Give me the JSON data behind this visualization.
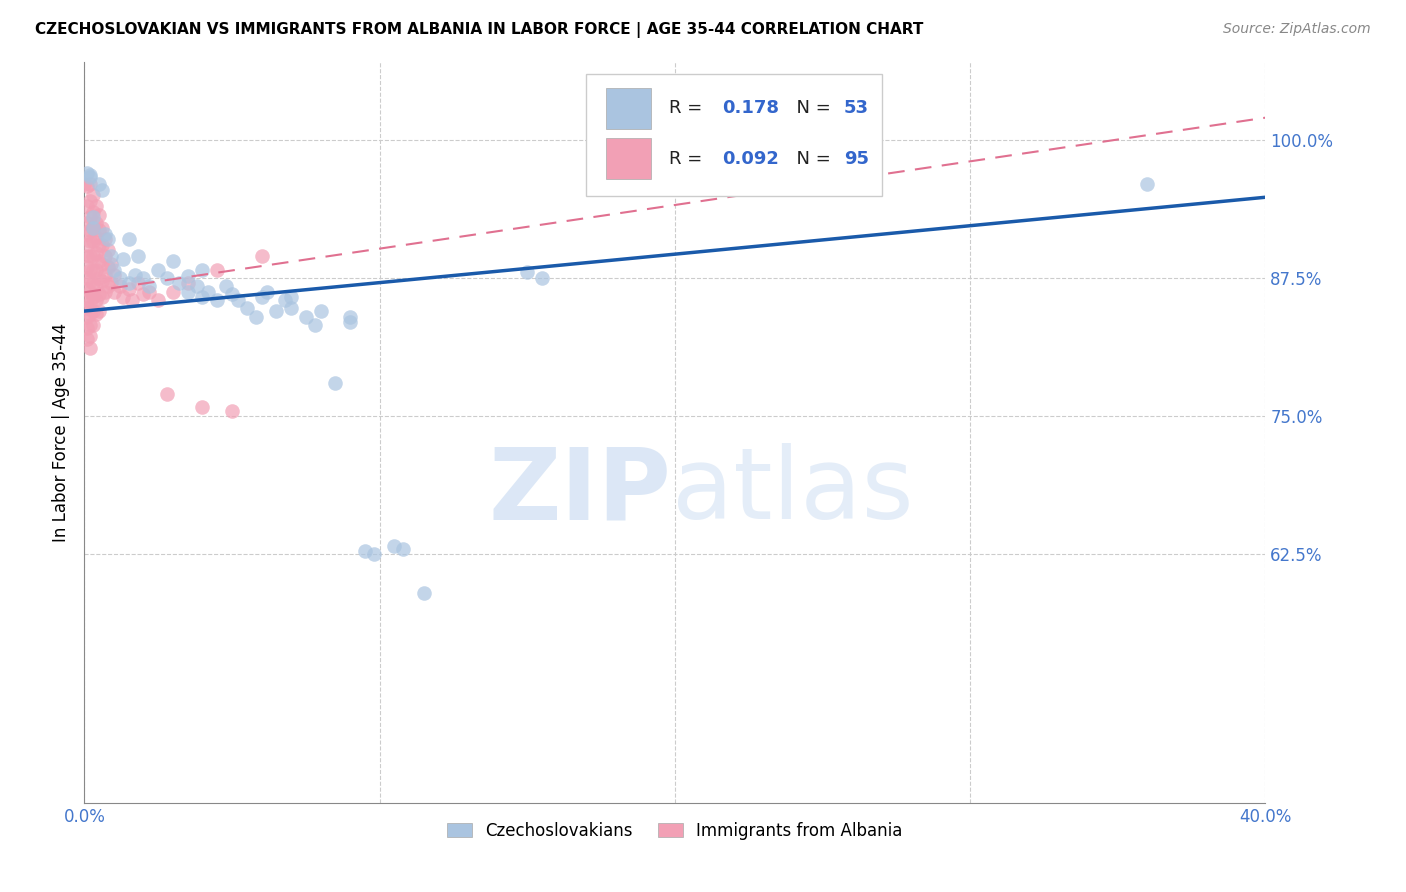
{
  "title": "CZECHOSLOVAKIAN VS IMMIGRANTS FROM ALBANIA IN LABOR FORCE | AGE 35-44 CORRELATION CHART",
  "source": "Source: ZipAtlas.com",
  "ylabel": "In Labor Force | Age 35-44",
  "xlim": [
    0.0,
    0.4
  ],
  "ylim": [
    0.4,
    1.07
  ],
  "yticks": [
    0.625,
    0.75,
    0.875,
    1.0
  ],
  "ytick_labels": [
    "62.5%",
    "75.0%",
    "87.5%",
    "100.0%"
  ],
  "xticks": [
    0.0,
    0.1,
    0.2,
    0.3,
    0.4
  ],
  "legend_r_blue": "0.178",
  "legend_n_blue": "53",
  "legend_r_pink": "0.092",
  "legend_n_pink": "95",
  "blue_color": "#aac4e0",
  "pink_color": "#f2a0b5",
  "trendline_blue_color": "#1a5aaa",
  "trendline_pink_color": "#e07090",
  "blue_trend_x0": 0.0,
  "blue_trend_y0": 0.845,
  "blue_trend_x1": 0.4,
  "blue_trend_y1": 0.948,
  "pink_trend_x0": 0.0,
  "pink_trend_y0": 0.862,
  "pink_trend_x1": 0.4,
  "pink_trend_y1": 1.02,
  "blue_scatter": [
    [
      0.001,
      0.97
    ],
    [
      0.002,
      0.968
    ],
    [
      0.002,
      0.966
    ],
    [
      0.003,
      0.93
    ],
    [
      0.003,
      0.92
    ],
    [
      0.005,
      0.96
    ],
    [
      0.006,
      0.955
    ],
    [
      0.007,
      0.915
    ],
    [
      0.008,
      0.91
    ],
    [
      0.009,
      0.895
    ],
    [
      0.01,
      0.882
    ],
    [
      0.012,
      0.875
    ],
    [
      0.013,
      0.892
    ],
    [
      0.015,
      0.87
    ],
    [
      0.015,
      0.91
    ],
    [
      0.017,
      0.878
    ],
    [
      0.018,
      0.895
    ],
    [
      0.02,
      0.875
    ],
    [
      0.022,
      0.868
    ],
    [
      0.025,
      0.882
    ],
    [
      0.028,
      0.875
    ],
    [
      0.03,
      0.89
    ],
    [
      0.032,
      0.87
    ],
    [
      0.035,
      0.862
    ],
    [
      0.035,
      0.877
    ],
    [
      0.038,
      0.868
    ],
    [
      0.04,
      0.882
    ],
    [
      0.04,
      0.858
    ],
    [
      0.042,
      0.862
    ],
    [
      0.045,
      0.855
    ],
    [
      0.048,
      0.868
    ],
    [
      0.05,
      0.86
    ],
    [
      0.052,
      0.855
    ],
    [
      0.055,
      0.848
    ],
    [
      0.058,
      0.84
    ],
    [
      0.06,
      0.858
    ],
    [
      0.062,
      0.862
    ],
    [
      0.065,
      0.845
    ],
    [
      0.068,
      0.855
    ],
    [
      0.07,
      0.858
    ],
    [
      0.07,
      0.848
    ],
    [
      0.075,
      0.84
    ],
    [
      0.078,
      0.832
    ],
    [
      0.08,
      0.845
    ],
    [
      0.085,
      0.78
    ],
    [
      0.09,
      0.84
    ],
    [
      0.09,
      0.835
    ],
    [
      0.095,
      0.628
    ],
    [
      0.098,
      0.625
    ],
    [
      0.105,
      0.632
    ],
    [
      0.108,
      0.63
    ],
    [
      0.115,
      0.59
    ],
    [
      0.15,
      0.88
    ],
    [
      0.155,
      0.875
    ],
    [
      0.36,
      0.96
    ]
  ],
  "pink_scatter": [
    [
      0.0,
      0.96
    ],
    [
      0.001,
      0.958
    ],
    [
      0.001,
      0.94
    ],
    [
      0.001,
      0.925
    ],
    [
      0.001,
      0.915
    ],
    [
      0.001,
      0.905
    ],
    [
      0.001,
      0.895
    ],
    [
      0.001,
      0.885
    ],
    [
      0.001,
      0.875
    ],
    [
      0.001,
      0.865
    ],
    [
      0.001,
      0.855
    ],
    [
      0.001,
      0.848
    ],
    [
      0.001,
      0.84
    ],
    [
      0.001,
      0.83
    ],
    [
      0.001,
      0.82
    ],
    [
      0.002,
      0.96
    ],
    [
      0.002,
      0.945
    ],
    [
      0.002,
      0.93
    ],
    [
      0.002,
      0.918
    ],
    [
      0.002,
      0.908
    ],
    [
      0.002,
      0.895
    ],
    [
      0.002,
      0.882
    ],
    [
      0.002,
      0.872
    ],
    [
      0.002,
      0.862
    ],
    [
      0.002,
      0.852
    ],
    [
      0.002,
      0.842
    ],
    [
      0.002,
      0.832
    ],
    [
      0.002,
      0.822
    ],
    [
      0.002,
      0.812
    ],
    [
      0.003,
      0.95
    ],
    [
      0.003,
      0.935
    ],
    [
      0.003,
      0.92
    ],
    [
      0.003,
      0.908
    ],
    [
      0.003,
      0.895
    ],
    [
      0.003,
      0.882
    ],
    [
      0.003,
      0.87
    ],
    [
      0.003,
      0.858
    ],
    [
      0.003,
      0.845
    ],
    [
      0.003,
      0.832
    ],
    [
      0.004,
      0.94
    ],
    [
      0.004,
      0.925
    ],
    [
      0.004,
      0.912
    ],
    [
      0.004,
      0.898
    ],
    [
      0.004,
      0.882
    ],
    [
      0.004,
      0.868
    ],
    [
      0.004,
      0.855
    ],
    [
      0.004,
      0.842
    ],
    [
      0.005,
      0.932
    ],
    [
      0.005,
      0.918
    ],
    [
      0.005,
      0.905
    ],
    [
      0.005,
      0.89
    ],
    [
      0.005,
      0.875
    ],
    [
      0.005,
      0.86
    ],
    [
      0.005,
      0.845
    ],
    [
      0.006,
      0.92
    ],
    [
      0.006,
      0.905
    ],
    [
      0.006,
      0.888
    ],
    [
      0.006,
      0.872
    ],
    [
      0.006,
      0.858
    ],
    [
      0.007,
      0.91
    ],
    [
      0.007,
      0.895
    ],
    [
      0.007,
      0.878
    ],
    [
      0.007,
      0.862
    ],
    [
      0.008,
      0.9
    ],
    [
      0.008,
      0.885
    ],
    [
      0.008,
      0.868
    ],
    [
      0.009,
      0.888
    ],
    [
      0.009,
      0.87
    ],
    [
      0.01,
      0.878
    ],
    [
      0.01,
      0.862
    ],
    [
      0.012,
      0.868
    ],
    [
      0.013,
      0.858
    ],
    [
      0.015,
      0.865
    ],
    [
      0.016,
      0.855
    ],
    [
      0.018,
      0.87
    ],
    [
      0.02,
      0.86
    ],
    [
      0.022,
      0.862
    ],
    [
      0.025,
      0.855
    ],
    [
      0.028,
      0.77
    ],
    [
      0.03,
      0.862
    ],
    [
      0.035,
      0.87
    ],
    [
      0.04,
      0.758
    ],
    [
      0.045,
      0.882
    ],
    [
      0.05,
      0.755
    ],
    [
      0.06,
      0.895
    ]
  ]
}
